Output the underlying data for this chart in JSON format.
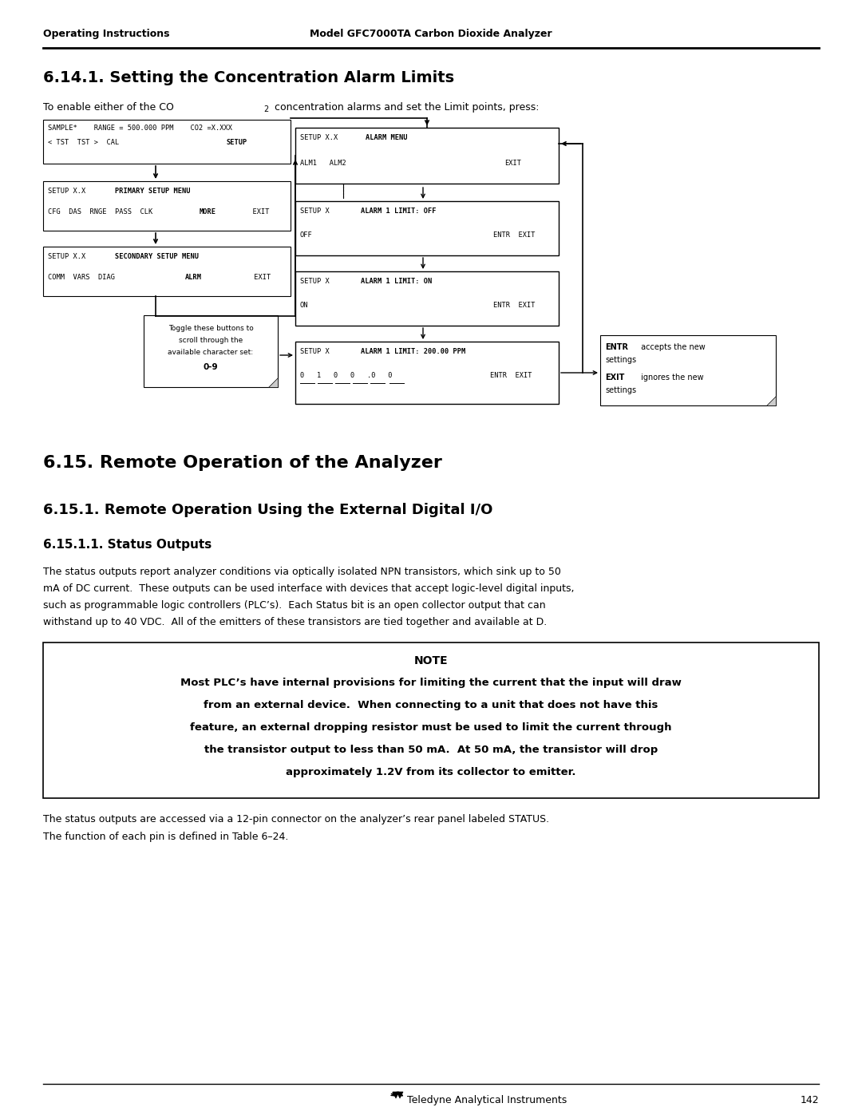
{
  "header_left": "Operating Instructions",
  "header_right": "Model GFC7000TA Carbon Dioxide Analyzer",
  "section_title_1": "6.14.1. Setting the Concentration Alarm Limits",
  "section_title_2": "6.15. Remote Operation of the Analyzer",
  "section_title_3": "6.15.1. Remote Operation Using the External Digital I/O",
  "section_title_4": "6.15.1.1. Status Outputs",
  "status_lines": [
    "The status outputs report analyzer conditions via optically isolated NPN transistors, which sink up to 50",
    "mA of DC current.  These outputs can be used interface with devices that accept logic-level digital inputs,",
    "such as programmable logic controllers (PLC’s).  Each Status bit is an open collector output that can",
    "withstand up to 40 VDC.  All of the emitters of these transistors are tied together and available at D."
  ],
  "note_title": "NOTE",
  "note_lines": [
    "Most PLC’s have internal provisions for limiting the current that the input will draw",
    "from an external device.  When connecting to a unit that does not have this",
    "feature, an external dropping resistor must be used to limit the current through",
    "the transistor output to less than 50 mA.  At 50 mA, the transistor will drop",
    "approximately 1.2V from its collector to emitter."
  ],
  "bottom_lines": [
    "The status outputs are accessed via a 12-pin connector on the analyzer’s rear panel labeled STATUS.",
    "The function of each pin is defined in Table 6–24."
  ],
  "footer_text": "Teledyne Analytical Instruments",
  "footer_page": "142"
}
